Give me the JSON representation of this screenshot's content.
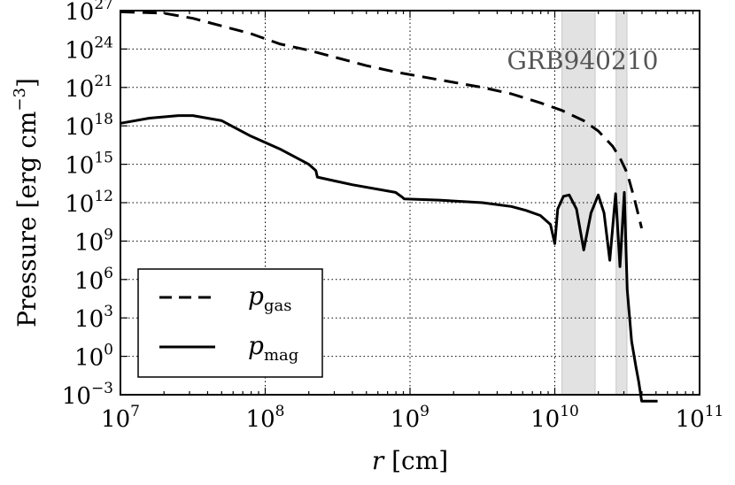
{
  "chart_data": {
    "type": "line",
    "xlabel": "r [cm]",
    "ylabel": "Pressure [erg cm^-3]",
    "x_scale": "log",
    "y_scale": "log",
    "xlim": [
      10000000.0,
      100000000000.0
    ],
    "ylim": [
      0.001,
      1e+27
    ],
    "grid": true,
    "x_ticks": [
      {
        "base": "10",
        "exp": "7",
        "value": 10000000.0
      },
      {
        "base": "10",
        "exp": "8",
        "value": 100000000.0
      },
      {
        "base": "10",
        "exp": "9",
        "value": 1000000000.0
      },
      {
        "base": "10",
        "exp": "10",
        "value": 10000000000.0
      },
      {
        "base": "10",
        "exp": "11",
        "value": 100000000000.0
      }
    ],
    "y_ticks": [
      {
        "base": "10",
        "exp": "27",
        "value": 1e+27
      },
      {
        "base": "10",
        "exp": "24",
        "value": 1e+24
      },
      {
        "base": "10",
        "exp": "21",
        "value": 1e+21
      },
      {
        "base": "10",
        "exp": "18",
        "value": 1e+18
      },
      {
        "base": "10",
        "exp": "15",
        "value": 1000000000000000.0
      },
      {
        "base": "10",
        "exp": "12",
        "value": 1000000000000.0
      },
      {
        "base": "10",
        "exp": "9",
        "value": 1000000000.0
      },
      {
        "base": "10",
        "exp": "6",
        "value": 1000000.0
      },
      {
        "base": "10",
        "exp": "3",
        "value": 1000.0
      },
      {
        "base": "10",
        "exp": "0",
        "value": 1
      },
      {
        "base": "10",
        "exp": "−3",
        "value": 0.001
      }
    ],
    "annotation": "GRB940210",
    "shaded_regions": [
      {
        "x_start": 11200000000.0,
        "x_end": 19000000000.0
      },
      {
        "x_start": 26500000000.0,
        "x_end": 31500000000.0
      }
    ],
    "legend": {
      "position": "lower-left",
      "entries": [
        {
          "base": "p",
          "sub": "gas",
          "style": "dashed"
        },
        {
          "base": "p",
          "sub": "mag",
          "style": "solid"
        }
      ]
    },
    "series": [
      {
        "name": "p_gas",
        "style": "dashed",
        "log10_x": [
          7.0,
          7.3,
          7.5,
          7.7,
          7.9,
          8.1,
          8.3,
          8.5,
          8.7,
          8.9,
          9.1,
          9.3,
          9.5,
          9.7,
          9.9,
          10.05,
          10.2,
          10.3,
          10.4,
          10.45,
          10.5,
          10.55,
          10.6
        ],
        "log10_y": [
          26.9,
          26.8,
          26.4,
          25.8,
          25.2,
          24.4,
          23.9,
          23.3,
          22.7,
          22.2,
          21.8,
          21.4,
          21.0,
          20.5,
          19.8,
          19.2,
          18.4,
          17.6,
          16.4,
          15.5,
          14.3,
          12.3,
          10.0
        ]
      },
      {
        "name": "p_mag",
        "style": "solid",
        "log10_x": [
          7.0,
          7.2,
          7.4,
          7.5,
          7.7,
          7.9,
          8.1,
          8.3,
          8.35,
          8.36,
          8.6,
          8.9,
          8.95,
          8.96,
          9.2,
          9.5,
          9.7,
          9.8,
          9.9,
          9.97,
          10.0,
          10.02,
          10.06,
          10.1,
          10.15,
          10.2,
          10.25,
          10.3,
          10.34,
          10.38,
          10.42,
          10.45,
          10.48,
          10.5,
          10.53,
          10.56,
          10.58,
          10.6,
          10.7,
          10.71
        ],
        "log10_y": [
          18.2,
          18.6,
          18.8,
          18.8,
          18.4,
          17.2,
          16.2,
          15.0,
          14.5,
          14.0,
          13.4,
          12.8,
          12.4,
          12.3,
          12.2,
          12.0,
          11.7,
          11.4,
          11.0,
          10.3,
          8.8,
          11.5,
          12.5,
          12.6,
          11.5,
          8.3,
          11.2,
          12.6,
          11.2,
          7.5,
          12.7,
          7.0,
          12.8,
          5.2,
          1.2,
          -0.8,
          -2.0,
          -3.5,
          -3.5,
          -3.5
        ]
      }
    ]
  }
}
